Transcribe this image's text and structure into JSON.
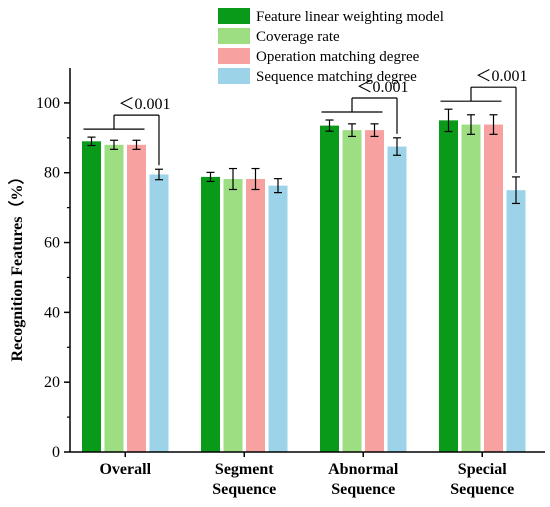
{
  "chart_data": {
    "type": "bar",
    "ylabel": "Recognition Features（%）",
    "ylim": [
      0,
      110
    ],
    "yticks": [
      0,
      20,
      40,
      60,
      80,
      100
    ],
    "categories": [
      [
        "Overall"
      ],
      [
        "Segment",
        "Sequence"
      ],
      [
        "Abnormal",
        "Sequence"
      ],
      [
        "Special",
        "Sequence"
      ]
    ],
    "series": [
      {
        "name": "Feature linear weighting model",
        "color": "#0a9a1a",
        "values": [
          89.0,
          78.8,
          93.5,
          95.0
        ],
        "errors": [
          1.2,
          1.3,
          1.6,
          3.2
        ]
      },
      {
        "name": "Coverage rate",
        "color": "#9ede83",
        "values": [
          88.0,
          78.2,
          92.2,
          93.8
        ],
        "errors": [
          1.3,
          3.0,
          1.8,
          2.8
        ]
      },
      {
        "name": "Operation matching degree",
        "color": "#f7a1a1",
        "values": [
          88.0,
          78.2,
          92.2,
          93.8
        ],
        "errors": [
          1.3,
          3.0,
          1.8,
          2.8
        ]
      },
      {
        "name": "Sequence matching degree",
        "color": "#9dd3e8",
        "values": [
          79.5,
          76.3,
          87.5,
          75.0
        ],
        "errors": [
          1.5,
          2.0,
          2.5,
          3.8
        ]
      }
    ],
    "legend_position": "top-right",
    "annotations": [
      {
        "category": 0,
        "text": "＜0.001"
      },
      {
        "category": 2,
        "text": "＜0.001"
      },
      {
        "category": 3,
        "text": "＜0.001"
      }
    ]
  }
}
